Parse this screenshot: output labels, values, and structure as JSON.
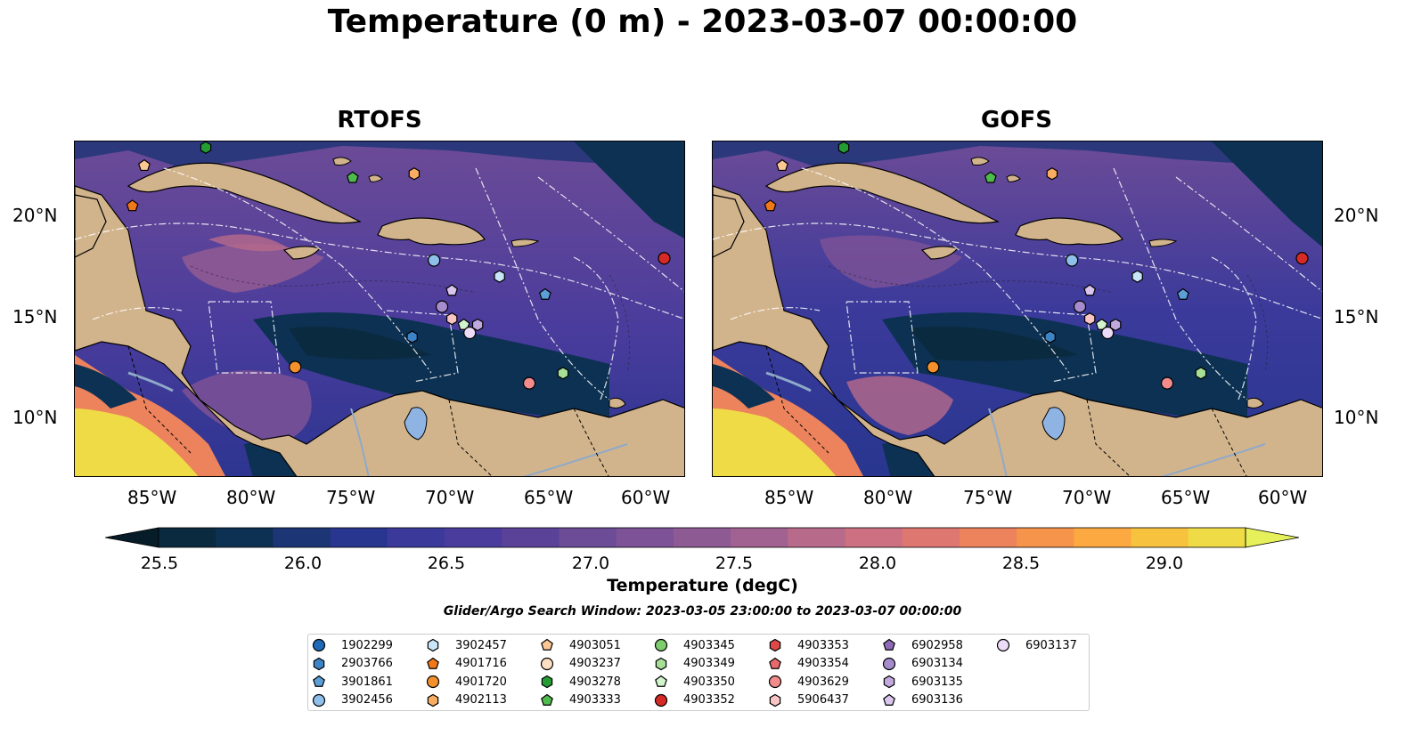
{
  "title": "Temperature (0 m) - 2023-03-07 00:00:00",
  "panels": [
    {
      "title": "RTOFS"
    },
    {
      "title": "GOFS"
    }
  ],
  "lon_ticks": [
    "85°W",
    "80°W",
    "75°W",
    "70°W",
    "65°W",
    "60°W"
  ],
  "lat_ticks": [
    "20°N",
    "15°N",
    "10°N"
  ],
  "colorbar": {
    "label": "Temperature (degC)",
    "ticks": [
      "25.5",
      "26.0",
      "26.5",
      "27.0",
      "27.5",
      "28.0",
      "28.5",
      "29.0"
    ],
    "min": 25.25,
    "max": 29.25,
    "colors": [
      "#0a2a3f",
      "#0d3153",
      "#1c3575",
      "#28368f",
      "#3b3a9b",
      "#4a3c9c",
      "#5b4299",
      "#6c4b97",
      "#7d5296",
      "#8e5a94",
      "#a26291",
      "#b86a8b",
      "#cc7082",
      "#dd7770",
      "#ec835c",
      "#f5944a",
      "#fba940",
      "#f7c33e",
      "#eedb46"
    ],
    "over_color": "#e6f05a",
    "under_color": "#061c28"
  },
  "search_window": "Glider/Argo Search Window: 2023-03-05 23:00:00 to 2023-03-07 00:00:00",
  "legend": [
    {
      "label": "1902299",
      "marker": "circle",
      "color": "#1f6ab8"
    },
    {
      "label": "2903766",
      "marker": "hexagon",
      "color": "#3d84c6"
    },
    {
      "label": "3901861",
      "marker": "pentagon",
      "color": "#5b9fd6"
    },
    {
      "label": "3902456",
      "marker": "circle",
      "color": "#8fc0ea"
    },
    {
      "label": "3902457",
      "marker": "hexagon",
      "color": "#c9e6f9"
    },
    {
      "label": "4901716",
      "marker": "pentagon",
      "color": "#f07818"
    },
    {
      "label": "4901720",
      "marker": "circle",
      "color": "#f5912d"
    },
    {
      "label": "4902113",
      "marker": "hexagon",
      "color": "#f9ad62"
    },
    {
      "label": "4903051",
      "marker": "pentagon",
      "color": "#fbc893"
    },
    {
      "label": "4903237",
      "marker": "circle",
      "color": "#fde0c3"
    },
    {
      "label": "4903278",
      "marker": "hexagon",
      "color": "#249b33"
    },
    {
      "label": "4903333",
      "marker": "pentagon",
      "color": "#4fbb4c"
    },
    {
      "label": "4903345",
      "marker": "circle",
      "color": "#7dcc6d"
    },
    {
      "label": "4903349",
      "marker": "hexagon",
      "color": "#a6df95"
    },
    {
      "label": "4903350",
      "marker": "pentagon",
      "color": "#d2f4cc"
    },
    {
      "label": "4903352",
      "marker": "circle",
      "color": "#d62a27"
    },
    {
      "label": "4903353",
      "marker": "hexagon",
      "color": "#df4848"
    },
    {
      "label": "4903354",
      "marker": "pentagon",
      "color": "#e8696b"
    },
    {
      "label": "4903629",
      "marker": "circle",
      "color": "#f28c8c"
    },
    {
      "label": "5906437",
      "marker": "hexagon",
      "color": "#f8c4c4"
    },
    {
      "label": "6902958",
      "marker": "pentagon",
      "color": "#8f6ab9"
    },
    {
      "label": "6903134",
      "marker": "circle",
      "color": "#a68bcd"
    },
    {
      "label": "6903135",
      "marker": "hexagon",
      "color": "#c1a9de"
    },
    {
      "label": "6903136",
      "marker": "pentagon",
      "color": "#d9c5ee"
    },
    {
      "label": "6903137",
      "marker": "circle",
      "color": "#ecdcf7"
    }
  ],
  "floats": [
    {
      "id": "4903278",
      "lon": -82.4,
      "lat": 23.4
    },
    {
      "id": "4903051",
      "lon": -85.5,
      "lat": 22.5
    },
    {
      "id": "4901716",
      "lon": -86.1,
      "lat": 20.5
    },
    {
      "id": "4903333",
      "lon": -75.0,
      "lat": 21.9
    },
    {
      "id": "4902113",
      "lon": -71.9,
      "lat": 22.1
    },
    {
      "id": "3902456",
      "lon": -70.9,
      "lat": 17.8
    },
    {
      "id": "3902457",
      "lon": -67.6,
      "lat": 17.0
    },
    {
      "id": "3901861",
      "lon": -65.3,
      "lat": 16.1
    },
    {
      "id": "4903352",
      "lon": -59.3,
      "lat": 17.9
    },
    {
      "id": "6903136",
      "lon": -70.0,
      "lat": 16.3
    },
    {
      "id": "6903134",
      "lon": -70.5,
      "lat": 15.5
    },
    {
      "id": "5906437",
      "lon": -70.0,
      "lat": 14.9
    },
    {
      "id": "4903350",
      "lon": -69.4,
      "lat": 14.6
    },
    {
      "id": "6903135",
      "lon": -68.7,
      "lat": 14.6
    },
    {
      "id": "6903137",
      "lon": -69.1,
      "lat": 14.2
    },
    {
      "id": "2903766",
      "lon": -72.0,
      "lat": 14.0
    },
    {
      "id": "4901720",
      "lon": -77.9,
      "lat": 12.5
    },
    {
      "id": "4903629",
      "lon": -66.1,
      "lat": 11.7
    },
    {
      "id": "4903349",
      "lon": -64.4,
      "lat": 12.2
    }
  ],
  "map_extent": {
    "lon_min": -89,
    "lon_max": -58.2,
    "lat_min": 7,
    "lat_max": 23.7
  }
}
